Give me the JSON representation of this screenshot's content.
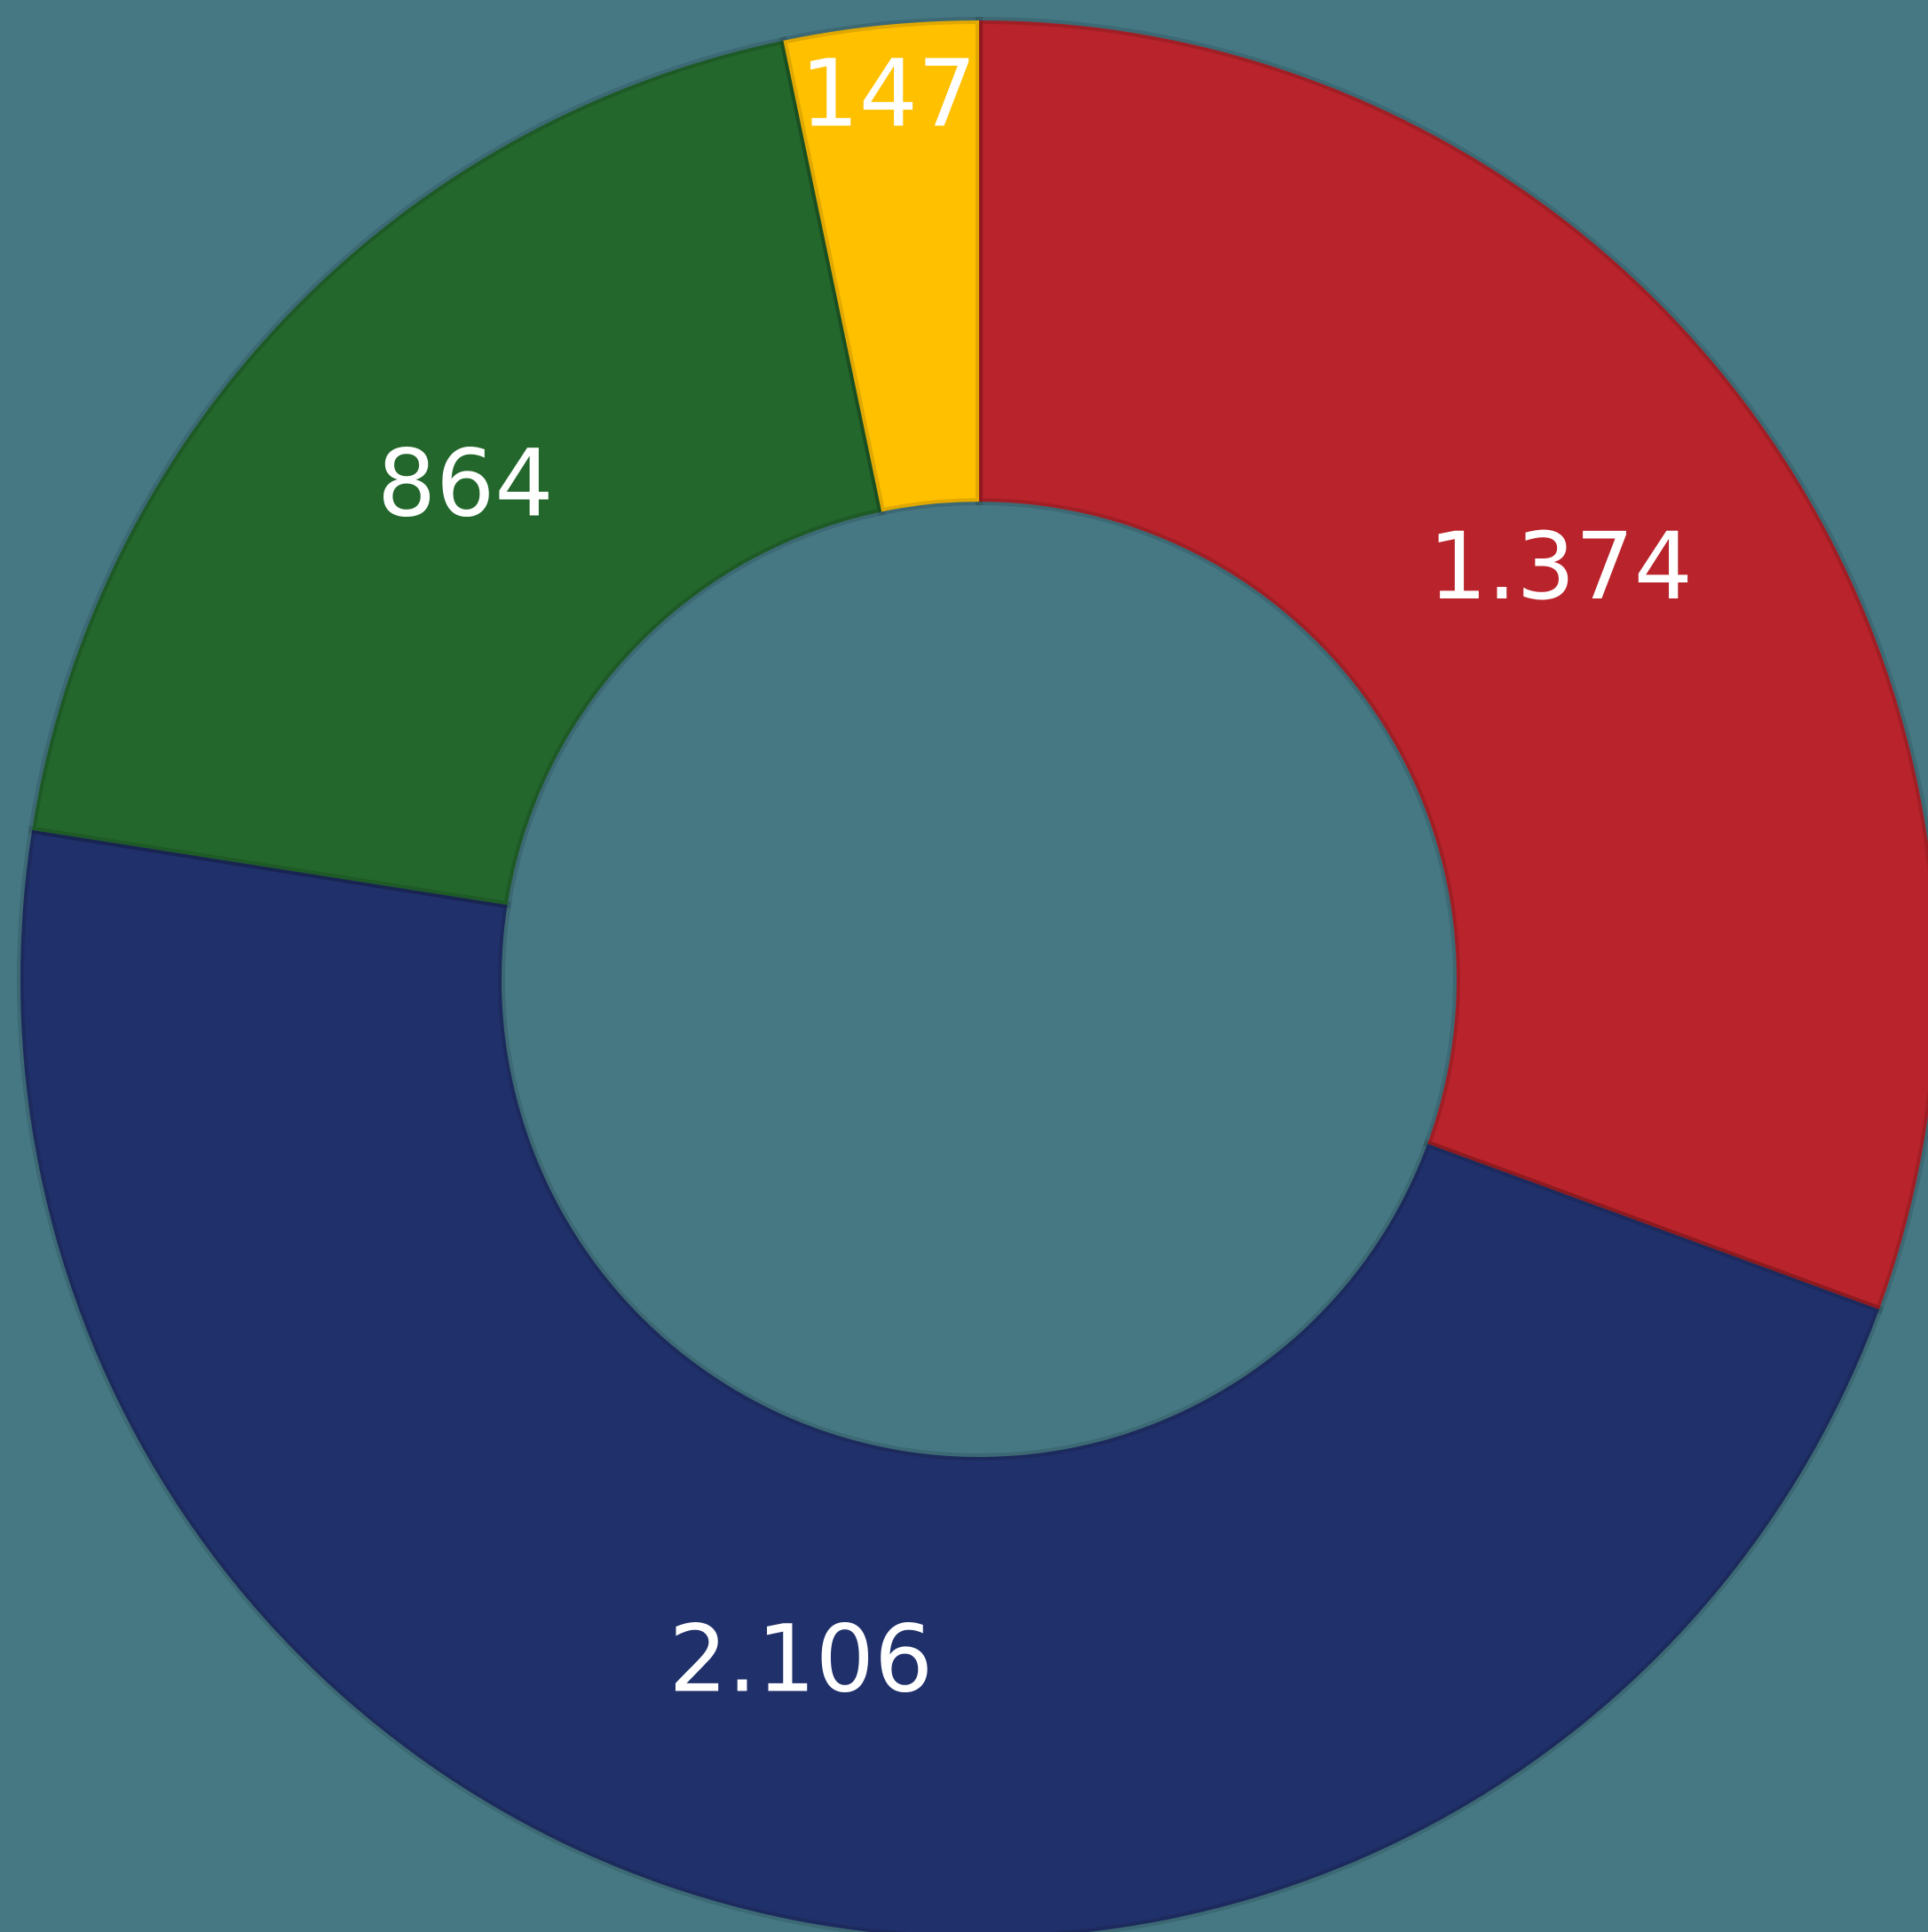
{
  "chart_data": {
    "type": "donut",
    "categories": [
      null,
      null,
      null,
      null
    ],
    "values": [
      1374,
      2106,
      864,
      147
    ],
    "value_labels": [
      "1.374",
      "2.106",
      "864",
      "147"
    ],
    "colors": [
      "#b9232b",
      "#20306a",
      "#23672c",
      "#ffc000"
    ]
  }
}
